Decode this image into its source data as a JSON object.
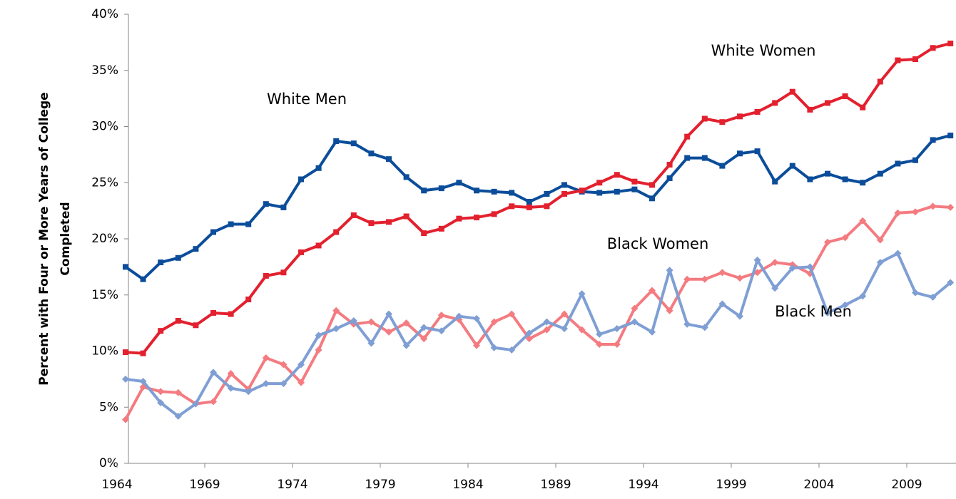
{
  "chart_data": {
    "type": "line",
    "ylabel": [
      "Percent with Four or More Years of College",
      "Completed"
    ],
    "categories": [
      1964,
      null,
      null,
      null,
      null,
      1969,
      null,
      null,
      null,
      null,
      1974,
      null,
      null,
      null,
      null,
      1979,
      null,
      null,
      null,
      null,
      1984,
      null,
      null,
      null,
      null,
      1989,
      null,
      null,
      null,
      null,
      1994,
      null,
      null,
      null,
      null,
      1999,
      null,
      null,
      null,
      null,
      2004,
      null,
      null,
      null,
      null,
      2009,
      null,
      null
    ],
    "series": [
      {
        "name": "White Men",
        "color": "#0b4d9a",
        "marker": "square",
        "values": [
          17.5,
          16.4,
          17.9,
          18.3,
          19.1,
          20.6,
          21.3,
          21.3,
          23.1,
          22.8,
          25.3,
          26.3,
          28.7,
          28.5,
          27.6,
          27.1,
          25.5,
          24.3,
          24.5,
          25.0,
          24.3,
          24.2,
          24.1,
          23.3,
          24.0,
          24.8,
          24.2,
          24.1,
          24.2,
          24.4,
          23.6,
          25.4,
          27.2,
          27.2,
          26.5,
          27.6,
          27.8,
          25.1,
          26.5,
          25.3,
          25.8,
          25.3,
          25.0,
          25.8,
          26.7,
          27.0,
          28.8,
          29.2
        ]
      },
      {
        "name": "White Women",
        "color": "#e3202e",
        "marker": "square",
        "values": [
          9.9,
          9.8,
          11.8,
          12.7,
          12.3,
          13.4,
          13.3,
          14.6,
          16.7,
          17.0,
          18.8,
          19.4,
          20.6,
          22.1,
          21.4,
          21.5,
          22.0,
          20.5,
          20.9,
          21.8,
          21.9,
          22.2,
          22.9,
          22.8,
          22.9,
          24.0,
          24.3,
          25.0,
          25.7,
          25.1,
          24.8,
          26.6,
          29.1,
          30.7,
          30.4,
          30.9,
          31.3,
          32.1,
          33.1,
          31.5,
          32.1,
          32.7,
          31.7,
          34.0,
          35.9,
          36.0,
          37.0,
          37.4
        ]
      },
      {
        "name": "Black Women",
        "color": "#f47b80",
        "marker": "diamond",
        "values": [
          3.9,
          6.8,
          6.4,
          6.3,
          5.3,
          5.5,
          8.0,
          6.6,
          9.4,
          8.8,
          7.2,
          10.1,
          13.6,
          12.4,
          12.6,
          11.7,
          12.5,
          11.1,
          13.2,
          12.8,
          10.5,
          12.6,
          13.3,
          11.1,
          11.9,
          13.3,
          11.9,
          10.6,
          10.6,
          13.8,
          15.4,
          13.6,
          16.4,
          16.4,
          17.0,
          16.5,
          17.0,
          17.9,
          17.7,
          16.9,
          19.7,
          20.1,
          21.6,
          19.9,
          22.3,
          22.4,
          22.9,
          22.8
        ]
      },
      {
        "name": "Black Men",
        "color": "#7f9fd4",
        "marker": "diamond",
        "values": [
          7.5,
          7.3,
          5.4,
          4.2,
          5.3,
          8.1,
          6.7,
          6.4,
          7.1,
          7.1,
          8.8,
          11.4,
          12.0,
          12.7,
          10.7,
          13.3,
          10.5,
          12.1,
          11.8,
          13.1,
          12.9,
          10.3,
          10.1,
          11.6,
          12.6,
          12.0,
          15.1,
          11.5,
          12.0,
          12.6,
          11.7,
          17.2,
          12.4,
          12.1,
          14.2,
          13.1,
          18.1,
          15.6,
          17.4,
          17.5,
          13.4,
          14.1,
          14.9,
          17.9,
          18.7,
          15.2,
          14.8,
          16.1
        ]
      }
    ],
    "ylim": [
      0,
      40
    ],
    "yticks": [
      {
        "value": 0,
        "label": "0%"
      },
      {
        "value": 5,
        "label": "5%"
      },
      {
        "value": 10,
        "label": "10%"
      },
      {
        "value": 15,
        "label": "15%"
      },
      {
        "value": 20,
        "label": "20%"
      },
      {
        "value": 25,
        "label": "25%"
      },
      {
        "value": 30,
        "label": "30%"
      },
      {
        "value": 35,
        "label": "35%"
      },
      {
        "value": 40,
        "label": "40%"
      }
    ],
    "grid": false
  }
}
